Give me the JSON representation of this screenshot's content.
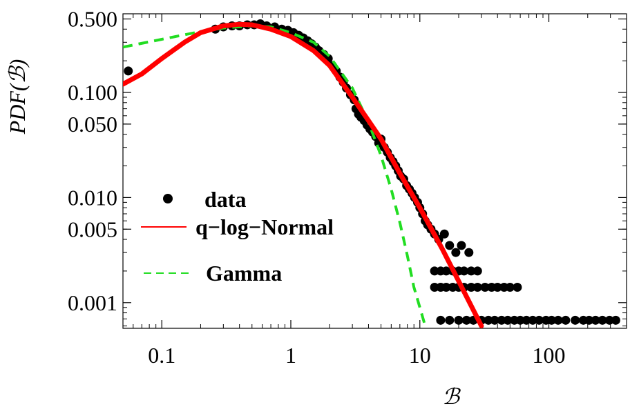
{
  "chart_data": {
    "type": "scatter",
    "title": "",
    "xlabel": "ℬ",
    "ylabel": "PDF(ℬ)",
    "xscale": "log",
    "yscale": "log",
    "xlim": [
      0.05,
      400
    ],
    "ylim": [
      0.00057,
      0.56
    ],
    "grid": false,
    "legend_position": "left",
    "x_ticks": [
      {
        "value": 0.1,
        "label": "0.1"
      },
      {
        "value": 1,
        "label": "1"
      },
      {
        "value": 10,
        "label": "10"
      },
      {
        "value": 100,
        "label": "100"
      }
    ],
    "y_ticks": [
      {
        "value": 0.001,
        "label": "0.001"
      },
      {
        "value": 0.005,
        "label": "0.005"
      },
      {
        "value": 0.01,
        "label": "0.010"
      },
      {
        "value": 0.05,
        "label": "0.050"
      },
      {
        "value": 0.1,
        "label": "0.100"
      },
      {
        "value": 0.5,
        "label": "0.500"
      }
    ],
    "series": [
      {
        "name": "data",
        "kind": "points",
        "color": "#000000",
        "points": [
          [
            0.055,
            0.16
          ],
          [
            0.26,
            0.4
          ],
          [
            0.3,
            0.42
          ],
          [
            0.35,
            0.43
          ],
          [
            0.4,
            0.43
          ],
          [
            0.46,
            0.44
          ],
          [
            0.52,
            0.44
          ],
          [
            0.58,
            0.45
          ],
          [
            0.65,
            0.43
          ],
          [
            0.75,
            0.42
          ],
          [
            0.85,
            0.4
          ],
          [
            0.95,
            0.39
          ],
          [
            1.05,
            0.37
          ],
          [
            1.15,
            0.35
          ],
          [
            1.25,
            0.33
          ],
          [
            1.35,
            0.31
          ],
          [
            1.45,
            0.29
          ],
          [
            1.55,
            0.27
          ],
          [
            1.65,
            0.25
          ],
          [
            1.8,
            0.23
          ],
          [
            1.95,
            0.21
          ],
          [
            2.1,
            0.18
          ],
          [
            2.25,
            0.16
          ],
          [
            2.4,
            0.14
          ],
          [
            2.55,
            0.125
          ],
          [
            2.7,
            0.11
          ],
          [
            2.9,
            0.095
          ],
          [
            3.1,
            0.085
          ],
          [
            3.2,
            0.07
          ],
          [
            3.35,
            0.062
          ],
          [
            3.5,
            0.058
          ],
          [
            3.7,
            0.054
          ],
          [
            3.9,
            0.049
          ],
          [
            4.1,
            0.045
          ],
          [
            4.3,
            0.042
          ],
          [
            4.55,
            0.038
          ],
          [
            4.8,
            0.033
          ],
          [
            5.0,
            0.036
          ],
          [
            5.3,
            0.03
          ],
          [
            5.6,
            0.027
          ],
          [
            5.9,
            0.024
          ],
          [
            6.2,
            0.022
          ],
          [
            6.5,
            0.02
          ],
          [
            6.8,
            0.018
          ],
          [
            7.1,
            0.016
          ],
          [
            7.5,
            0.015
          ],
          [
            7.9,
            0.013
          ],
          [
            8.3,
            0.012
          ],
          [
            8.7,
            0.011
          ],
          [
            9.1,
            0.01
          ],
          [
            9.6,
            0.009
          ],
          [
            10.0,
            0.008
          ],
          [
            10.5,
            0.007
          ],
          [
            11.0,
            0.006
          ],
          [
            11.5,
            0.0055
          ],
          [
            12.2,
            0.005
          ],
          [
            13.0,
            0.0045
          ],
          [
            14.0,
            0.004
          ],
          [
            15.5,
            0.0045
          ],
          [
            17.0,
            0.0035
          ],
          [
            19.0,
            0.003
          ],
          [
            21.0,
            0.0035
          ],
          [
            24.0,
            0.003
          ],
          [
            13.0,
            0.002
          ],
          [
            14.5,
            0.002
          ],
          [
            16.0,
            0.002
          ],
          [
            18.0,
            0.002
          ],
          [
            20.0,
            0.002
          ],
          [
            22.0,
            0.002
          ],
          [
            25.0,
            0.002
          ],
          [
            28.0,
            0.002
          ],
          [
            13.0,
            0.0014
          ],
          [
            14.5,
            0.0014
          ],
          [
            16.0,
            0.0014
          ],
          [
            18.0,
            0.0014
          ],
          [
            20.0,
            0.0014
          ],
          [
            22.0,
            0.0014
          ],
          [
            25.0,
            0.0014
          ],
          [
            28.0,
            0.0014
          ],
          [
            32.0,
            0.0014
          ],
          [
            36.0,
            0.0014
          ],
          [
            40.0,
            0.0014
          ],
          [
            45.0,
            0.0014
          ],
          [
            50.0,
            0.0014
          ],
          [
            57.0,
            0.0014
          ],
          [
            14.5,
            0.00068
          ],
          [
            17.0,
            0.00068
          ],
          [
            20.0,
            0.00068
          ],
          [
            23.0,
            0.00068
          ],
          [
            26.0,
            0.00068
          ],
          [
            30.0,
            0.00068
          ],
          [
            34.0,
            0.00068
          ],
          [
            38.0,
            0.00068
          ],
          [
            43.0,
            0.00068
          ],
          [
            48.0,
            0.00068
          ],
          [
            54.0,
            0.00068
          ],
          [
            60.0,
            0.00068
          ],
          [
            67.0,
            0.00068
          ],
          [
            75.0,
            0.00068
          ],
          [
            84.0,
            0.00068
          ],
          [
            95.0,
            0.00068
          ],
          [
            105.0,
            0.00068
          ],
          [
            118.0,
            0.00068
          ],
          [
            135.0,
            0.00068
          ],
          [
            160.0,
            0.00068
          ],
          [
            185.0,
            0.00068
          ],
          [
            205.0,
            0.00068
          ],
          [
            230.0,
            0.00068
          ],
          [
            260.0,
            0.00068
          ],
          [
            295.0,
            0.00068
          ],
          [
            330.0,
            0.00068
          ]
        ]
      },
      {
        "name": "q−log−Normal",
        "kind": "line",
        "style": "solid",
        "color": "#ff0000",
        "points": [
          [
            0.05,
            0.12
          ],
          [
            0.07,
            0.15
          ],
          [
            0.1,
            0.21
          ],
          [
            0.15,
            0.3
          ],
          [
            0.2,
            0.37
          ],
          [
            0.3,
            0.43
          ],
          [
            0.4,
            0.445
          ],
          [
            0.5,
            0.44
          ],
          [
            0.7,
            0.4
          ],
          [
            1.0,
            0.34
          ],
          [
            1.5,
            0.25
          ],
          [
            2.0,
            0.18
          ],
          [
            3.0,
            0.09
          ],
          [
            4.0,
            0.054
          ],
          [
            5.0,
            0.036
          ],
          [
            7.0,
            0.017
          ],
          [
            10.0,
            0.008
          ],
          [
            15.0,
            0.0032
          ],
          [
            20.0,
            0.0016
          ],
          [
            30.0,
            0.0006
          ]
        ]
      },
      {
        "name": "Gamma",
        "kind": "line",
        "style": "dashed",
        "color": "#22dd22",
        "points": [
          [
            0.05,
            0.27
          ],
          [
            0.1,
            0.32
          ],
          [
            0.2,
            0.38
          ],
          [
            0.3,
            0.41
          ],
          [
            0.5,
            0.43
          ],
          [
            0.7,
            0.42
          ],
          [
            1.0,
            0.37
          ],
          [
            1.5,
            0.3
          ],
          [
            2.0,
            0.22
          ],
          [
            3.0,
            0.11
          ],
          [
            4.0,
            0.052
          ],
          [
            5.0,
            0.025
          ],
          [
            6.0,
            0.012
          ],
          [
            7.0,
            0.0058
          ],
          [
            8.0,
            0.0028
          ],
          [
            9.0,
            0.0014
          ],
          [
            10.0,
            0.0009
          ],
          [
            11.0,
            0.0006
          ]
        ]
      }
    ]
  }
}
